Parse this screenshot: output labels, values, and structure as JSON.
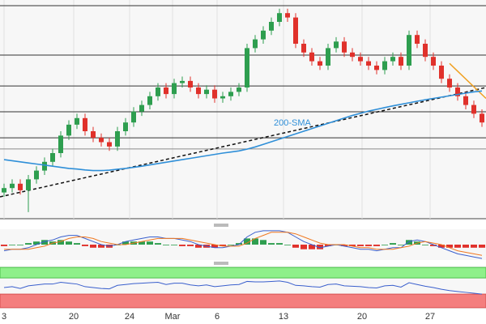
{
  "chart_data": {
    "type": "candlestick",
    "annotation": "200-SMA",
    "xlim": [
      -0.5,
      59.5
    ],
    "xticks": [
      {
        "value": 0,
        "label": "3"
      },
      {
        "value": 8.6,
        "label": "20"
      },
      {
        "value": 15.5,
        "label": "24"
      },
      {
        "value": 20.8,
        "label": "Mar"
      },
      {
        "value": 26.3,
        "label": "6"
      },
      {
        "value": 34.5,
        "label": "13"
      },
      {
        "value": 44.2,
        "label": "20"
      },
      {
        "value": 52.6,
        "label": "27"
      }
    ],
    "ylim": [
      0,
      100
    ],
    "up_color": "#2e9e4f",
    "down_color": "#e0312b",
    "open": [
      12,
      14,
      16,
      13,
      18,
      22,
      26,
      30,
      38,
      43,
      46,
      40,
      37,
      35,
      33,
      40,
      44,
      49,
      52,
      56,
      60,
      57,
      62,
      63,
      60,
      57,
      59,
      55,
      56,
      58,
      60,
      78,
      82,
      86,
      90,
      94,
      92,
      80,
      76,
      72,
      70,
      78,
      81,
      76,
      74,
      72,
      70,
      68,
      72,
      74,
      70,
      84,
      80,
      74,
      70,
      64,
      60,
      56,
      52,
      48
    ],
    "high": [
      16,
      18,
      18,
      20,
      24,
      28,
      32,
      40,
      45,
      48,
      48,
      42,
      39,
      37,
      42,
      46,
      51,
      54,
      58,
      62,
      62,
      64,
      65,
      65,
      62,
      61,
      61,
      58,
      60,
      62,
      80,
      84,
      88,
      92,
      96,
      96,
      94,
      82,
      78,
      74,
      80,
      83,
      83,
      78,
      76,
      74,
      72,
      74,
      76,
      76,
      86,
      86,
      82,
      76,
      72,
      66,
      62,
      58,
      54,
      50
    ],
    "low": [
      10,
      12,
      11,
      3,
      16,
      20,
      24,
      28,
      36,
      41,
      38,
      35,
      33,
      31,
      31,
      38,
      42,
      47,
      50,
      54,
      55,
      55,
      60,
      58,
      55,
      55,
      53,
      53,
      54,
      56,
      58,
      76,
      80,
      84,
      88,
      90,
      78,
      74,
      70,
      68,
      68,
      76,
      74,
      72,
      70,
      68,
      66,
      66,
      70,
      68,
      68,
      78,
      72,
      68,
      62,
      58,
      54,
      50,
      46,
      42
    ],
    "close": [
      14,
      16,
      13,
      18,
      22,
      26,
      30,
      38,
      43,
      46,
      40,
      37,
      35,
      33,
      40,
      44,
      49,
      52,
      56,
      60,
      57,
      62,
      63,
      60,
      57,
      59,
      55,
      56,
      58,
      60,
      78,
      82,
      86,
      90,
      94,
      92,
      80,
      76,
      72,
      70,
      78,
      81,
      76,
      74,
      72,
      70,
      68,
      72,
      74,
      70,
      84,
      80,
      74,
      70,
      64,
      60,
      56,
      52,
      48,
      44
    ],
    "sma": {
      "color": "#2f8fd8",
      "values": [
        27,
        26.5,
        26,
        25.5,
        25,
        24.5,
        24,
        23.5,
        23,
        22.7,
        22.3,
        22,
        22,
        22.2,
        22.6,
        23,
        23.5,
        24,
        24.6,
        25.2,
        25.8,
        26.4,
        27,
        27.6,
        28.2,
        28.8,
        29.4,
        30,
        30.5,
        31,
        31.8,
        32.8,
        34,
        35.2,
        36.4,
        37.6,
        38.8,
        40,
        41.2,
        42.4,
        43.6,
        44.8,
        46,
        47.2,
        48.2,
        49.2,
        50,
        50.8,
        51.6,
        52.3,
        53,
        53.7,
        54.4,
        55,
        55.6,
        56.2,
        56.8,
        57.4,
        58,
        58.4
      ]
    },
    "levels": [
      97.4,
      74.8,
      60.7,
      48.9,
      37,
      31.9
    ],
    "trendline": {
      "color": "#111111",
      "x": [
        -0.5,
        59.5
      ],
      "y": [
        10,
        60
      ]
    },
    "resistance_line": {
      "color": "#f0a020",
      "x": [
        55,
        59.5
      ],
      "y": [
        71,
        55
      ]
    },
    "macd": {
      "ylim": [
        -1,
        1
      ],
      "macd_color": "#3a5fcd",
      "signal_color": "#f07820",
      "macd": [
        -0.4,
        -0.3,
        -0.3,
        -0.2,
        0,
        0.2,
        0.3,
        0.5,
        0.6,
        0.6,
        0.4,
        0.2,
        0,
        -0.1,
        0,
        0.2,
        0.3,
        0.4,
        0.5,
        0.5,
        0.4,
        0.4,
        0.3,
        0.2,
        0,
        -0.1,
        -0.2,
        -0.2,
        -0.1,
        0,
        0.5,
        0.8,
        0.9,
        0.9,
        0.9,
        0.8,
        0.5,
        0.2,
        0,
        -0.2,
        -0.1,
        0,
        -0.1,
        -0.2,
        -0.3,
        -0.3,
        -0.4,
        -0.3,
        -0.2,
        -0.2,
        0.2,
        0.3,
        0.2,
        0,
        -0.2,
        -0.4,
        -0.6,
        -0.7,
        -0.8,
        -0.9
      ],
      "signal": [
        -0.3,
        -0.3,
        -0.3,
        -0.3,
        -0.2,
        -0.1,
        0.1,
        0.2,
        0.4,
        0.5,
        0.5,
        0.4,
        0.2,
        0.1,
        0,
        0,
        0.1,
        0.2,
        0.3,
        0.4,
        0.4,
        0.4,
        0.4,
        0.3,
        0.2,
        0.1,
        0,
        -0.1,
        -0.1,
        -0.1,
        0.1,
        0.4,
        0.6,
        0.8,
        0.8,
        0.8,
        0.7,
        0.5,
        0.3,
        0.1,
        0,
        0,
        0,
        -0.1,
        -0.2,
        -0.2,
        -0.3,
        -0.3,
        -0.3,
        -0.2,
        -0.1,
        0.1,
        0.2,
        0.1,
        0,
        -0.2,
        -0.4,
        -0.5,
        -0.6,
        -0.7
      ],
      "histogram": [
        -0.1,
        0,
        0,
        0.1,
        0.2,
        0.3,
        0.2,
        0.3,
        0.2,
        0.1,
        -0.1,
        -0.2,
        -0.2,
        -0.2,
        0,
        0.2,
        0.2,
        0.2,
        0.2,
        0.1,
        0,
        0,
        -0.1,
        -0.1,
        -0.2,
        -0.2,
        -0.2,
        -0.1,
        0,
        0.1,
        0.4,
        0.4,
        0.3,
        0.1,
        0.1,
        0,
        -0.2,
        -0.3,
        -0.3,
        -0.3,
        -0.1,
        0,
        -0.1,
        -0.1,
        -0.1,
        -0.1,
        -0.1,
        0,
        0.1,
        0,
        0.3,
        0.2,
        0,
        -0.1,
        -0.2,
        -0.2,
        -0.2,
        -0.2,
        -0.2,
        -0.2
      ]
    },
    "rsi": {
      "ylim": [
        0,
        100
      ],
      "color": "#3a5fcd",
      "overbought": [
        72,
        96
      ],
      "oversold": [
        4,
        35
      ],
      "values": [
        50,
        52,
        48,
        54,
        56,
        58,
        58,
        62,
        60,
        58,
        52,
        50,
        48,
        47,
        55,
        57,
        59,
        60,
        61,
        62,
        57,
        60,
        60,
        56,
        54,
        56,
        52,
        54,
        56,
        57,
        64,
        63,
        63,
        64,
        65,
        62,
        55,
        54,
        52,
        51,
        57,
        58,
        54,
        53,
        52,
        50,
        49,
        54,
        55,
        51,
        61,
        57,
        53,
        50,
        46,
        43,
        41,
        39,
        37,
        35
      ]
    }
  }
}
